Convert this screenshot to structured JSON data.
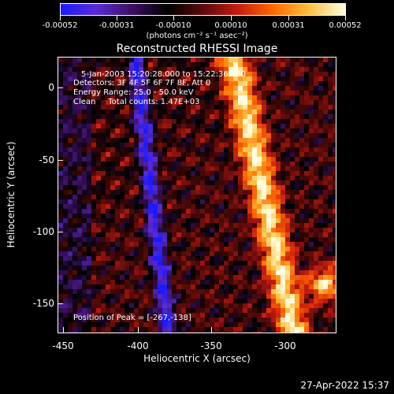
{
  "colorbar": {
    "tick_labels": [
      "-0.00052",
      "-0.00031",
      "-0.00010",
      "0.00010",
      "0.00031",
      "0.00052"
    ],
    "units": "(photons cm⁻² s⁻¹ asec⁻²)"
  },
  "title": "Reconstructed RHESSI Image",
  "info": {
    "time_range": "5-Jan-2003 15:20:28.000 to 15:22:36.000",
    "detectors": "Detectors: 3F 4F 5F 6F 7F 8F, Att 0",
    "energy_range": "Energy Range: 25.0 - 50.0 keV",
    "algorithm": "Clean     Total counts: 1.47E+03",
    "peak": "Position of Peak = [-267,-138]"
  },
  "axes": {
    "xlabel": "Heliocentric X (arcsec)",
    "ylabel": "Heliocentric Y (arcsec)",
    "xticks": [
      "-450",
      "-400",
      "-350",
      "-300"
    ],
    "yticks": [
      "0",
      "-50",
      "-100",
      "-150"
    ]
  },
  "image_data": {
    "xlim": [
      -455,
      -264
    ],
    "ylim": [
      -172,
      18
    ],
    "colormap": [
      "#1a1aff",
      "#5a2bd6",
      "#3b1060",
      "#000000",
      "#5a0a0a",
      "#c81c10",
      "#ff6a00",
      "#ffc040",
      "#ffffe0"
    ]
  },
  "timestamp": "27-Apr-2022 15:37"
}
